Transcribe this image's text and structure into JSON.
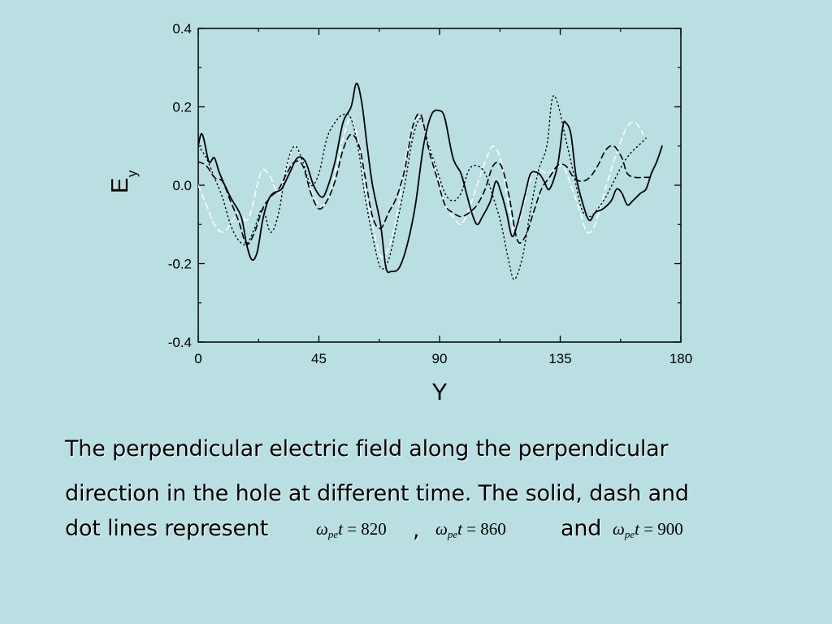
{
  "chart_data": {
    "type": "line",
    "title": "",
    "xlabel": "Y",
    "ylabel": "E",
    "ylabel_sub": "y",
    "xlim": [
      0,
      180
    ],
    "ylim": [
      -0.4,
      0.4
    ],
    "xticks": [
      0,
      45,
      90,
      135,
      180
    ],
    "xtick_labels": [
      "0",
      "45",
      "90",
      "135",
      "180"
    ],
    "yticks": [
      0.4,
      0.2,
      0.0,
      -0.2,
      -0.4
    ],
    "ytick_labels": [
      "0.4",
      "0.2",
      "0.0",
      "-0.2",
      "-0.4"
    ],
    "grid": false,
    "series": [
      {
        "style": "solid",
        "color": "#000000",
        "points": [
          [
            0,
            0.1
          ],
          [
            1,
            0.13
          ],
          [
            2,
            0.12
          ],
          [
            4,
            0.06
          ],
          [
            6,
            0.07
          ],
          [
            8,
            0.03
          ],
          [
            12,
            -0.03
          ],
          [
            16,
            -0.08
          ],
          [
            18,
            -0.15
          ],
          [
            20,
            -0.19
          ],
          [
            22,
            -0.17
          ],
          [
            24,
            -0.09
          ],
          [
            26,
            -0.04
          ],
          [
            28,
            -0.02
          ],
          [
            31,
            -0.01
          ],
          [
            34,
            0.03
          ],
          [
            37,
            0.07
          ],
          [
            40,
            0.06
          ],
          [
            43,
            0.0
          ],
          [
            46,
            -0.03
          ],
          [
            48,
            -0.01
          ],
          [
            51,
            0.06
          ],
          [
            54,
            0.16
          ],
          [
            57,
            0.2
          ],
          [
            59,
            0.26
          ],
          [
            61,
            0.21
          ],
          [
            63,
            0.1
          ],
          [
            65,
            0.0
          ],
          [
            68,
            -0.1
          ],
          [
            70,
            -0.21
          ],
          [
            72,
            -0.22
          ],
          [
            75,
            -0.21
          ],
          [
            78,
            -0.15
          ],
          [
            81,
            -0.05
          ],
          [
            84,
            0.1
          ],
          [
            87,
            0.18
          ],
          [
            90,
            0.19
          ],
          [
            92,
            0.17
          ],
          [
            95,
            0.07
          ],
          [
            98,
            0.03
          ],
          [
            100,
            -0.02
          ],
          [
            102,
            -0.07
          ],
          [
            104,
            -0.1
          ],
          [
            106,
            -0.08
          ],
          [
            109,
            -0.04
          ],
          [
            111,
            0.01
          ],
          [
            113,
            -0.02
          ],
          [
            115,
            -0.07
          ],
          [
            117,
            -0.13
          ],
          [
            119,
            -0.1
          ],
          [
            122,
            -0.02
          ],
          [
            124,
            0.03
          ],
          [
            127,
            0.03
          ],
          [
            129,
            0.01
          ],
          [
            131,
            -0.01
          ],
          [
            134,
            0.05
          ],
          [
            136,
            0.15
          ],
          [
            137,
            0.16
          ],
          [
            139,
            0.13
          ],
          [
            141,
            0.02
          ],
          [
            144,
            -0.06
          ],
          [
            146,
            -0.09
          ],
          [
            148,
            -0.07
          ],
          [
            151,
            -0.06
          ],
          [
            154,
            -0.04
          ],
          [
            156,
            -0.01
          ],
          [
            158,
            -0.02
          ],
          [
            160,
            -0.05
          ],
          [
            162,
            -0.04
          ],
          [
            165,
            -0.02
          ],
          [
            167,
            -0.01
          ],
          [
            169,
            0.03
          ],
          [
            171,
            0.06
          ],
          [
            173,
            0.1
          ]
        ]
      },
      {
        "style": "dash",
        "color": "#000000",
        "points": [
          [
            0,
            0.06
          ],
          [
            3,
            0.05
          ],
          [
            6,
            0.02
          ],
          [
            9,
            0.01
          ],
          [
            12,
            -0.04
          ],
          [
            15,
            -0.09
          ],
          [
            18,
            -0.15
          ],
          [
            21,
            -0.12
          ],
          [
            24,
            -0.06
          ],
          [
            27,
            -0.03
          ],
          [
            30,
            -0.01
          ],
          [
            33,
            0.03
          ],
          [
            36,
            0.06
          ],
          [
            39,
            0.05
          ],
          [
            42,
            -0.02
          ],
          [
            45,
            -0.06
          ],
          [
            48,
            -0.04
          ],
          [
            51,
            0.01
          ],
          [
            54,
            0.09
          ],
          [
            57,
            0.13
          ],
          [
            60,
            0.1
          ],
          [
            62,
            0.03
          ],
          [
            65,
            -0.08
          ],
          [
            68,
            -0.11
          ],
          [
            71,
            -0.07
          ],
          [
            74,
            -0.03
          ],
          [
            77,
            0.04
          ],
          [
            80,
            0.15
          ],
          [
            83,
            0.18
          ],
          [
            86,
            0.09
          ],
          [
            89,
            0.02
          ],
          [
            92,
            -0.05
          ],
          [
            95,
            -0.07
          ],
          [
            98,
            -0.08
          ],
          [
            101,
            -0.07
          ],
          [
            104,
            -0.05
          ],
          [
            107,
            -0.01
          ],
          [
            110,
            0.05
          ],
          [
            113,
            0.05
          ],
          [
            116,
            -0.03
          ],
          [
            119,
            -0.14
          ],
          [
            122,
            -0.13
          ],
          [
            125,
            -0.07
          ],
          [
            128,
            -0.01
          ],
          [
            131,
            0.02
          ],
          [
            134,
            0.05
          ],
          [
            137,
            0.05
          ],
          [
            140,
            0.02
          ],
          [
            143,
            0.01
          ],
          [
            146,
            0.02
          ],
          [
            149,
            0.05
          ],
          [
            152,
            0.09
          ],
          [
            155,
            0.1
          ],
          [
            158,
            0.07
          ],
          [
            160,
            0.03
          ],
          [
            163,
            0.02
          ],
          [
            166,
            0.02
          ],
          [
            170,
            0.02
          ]
        ]
      },
      {
        "style": "dot",
        "color": "#000000",
        "points": [
          [
            0,
            0.1
          ],
          [
            3,
            0.07
          ],
          [
            6,
            0.02
          ],
          [
            9,
            -0.03
          ],
          [
            12,
            -0.1
          ],
          [
            15,
            -0.14
          ],
          [
            18,
            -0.15
          ],
          [
            21,
            -0.11
          ],
          [
            24,
            -0.06
          ],
          [
            27,
            -0.12
          ],
          [
            30,
            -0.07
          ],
          [
            33,
            0.05
          ],
          [
            36,
            0.1
          ],
          [
            39,
            0.06
          ],
          [
            42,
            0.0
          ],
          [
            45,
            0.03
          ],
          [
            48,
            0.12
          ],
          [
            51,
            0.16
          ],
          [
            54,
            0.18
          ],
          [
            57,
            0.17
          ],
          [
            60,
            0.08
          ],
          [
            62,
            -0.02
          ],
          [
            65,
            -0.13
          ],
          [
            68,
            -0.21
          ],
          [
            71,
            -0.19
          ],
          [
            74,
            -0.1
          ],
          [
            77,
            0.0
          ],
          [
            80,
            0.12
          ],
          [
            83,
            0.17
          ],
          [
            86,
            0.1
          ],
          [
            89,
            0.04
          ],
          [
            92,
            -0.02
          ],
          [
            95,
            -0.04
          ],
          [
            98,
            -0.02
          ],
          [
            101,
            0.04
          ],
          [
            104,
            0.05
          ],
          [
            107,
            0.03
          ],
          [
            110,
            -0.03
          ],
          [
            113,
            -0.1
          ],
          [
            116,
            -0.2
          ],
          [
            118,
            -0.24
          ],
          [
            121,
            -0.18
          ],
          [
            124,
            -0.06
          ],
          [
            127,
            0.04
          ],
          [
            130,
            0.1
          ],
          [
            132,
            0.22
          ],
          [
            134,
            0.21
          ],
          [
            137,
            0.12
          ],
          [
            140,
            0.03
          ],
          [
            143,
            -0.06
          ],
          [
            146,
            -0.08
          ],
          [
            149,
            -0.06
          ],
          [
            152,
            -0.03
          ],
          [
            155,
            0.01
          ],
          [
            158,
            0.05
          ],
          [
            161,
            0.08
          ],
          [
            164,
            0.1
          ],
          [
            167,
            0.12
          ]
        ]
      },
      {
        "style": "dash",
        "color": "#ffffff",
        "points": [
          [
            0,
            0.0
          ],
          [
            3,
            -0.05
          ],
          [
            6,
            -0.1
          ],
          [
            9,
            -0.12
          ],
          [
            12,
            -0.1
          ],
          [
            15,
            -0.07
          ],
          [
            18,
            -0.09
          ],
          [
            20,
            -0.06
          ],
          [
            22,
            0.0
          ],
          [
            24,
            0.04
          ],
          [
            27,
            0.02
          ],
          [
            30,
            -0.02
          ],
          [
            33,
            0.05
          ],
          [
            36,
            0.1
          ],
          [
            39,
            0.06
          ],
          [
            42,
            -0.01
          ],
          [
            45,
            -0.05
          ],
          [
            48,
            -0.04
          ],
          [
            51,
            0.03
          ],
          [
            54,
            0.12
          ],
          [
            57,
            0.17
          ],
          [
            60,
            0.1
          ],
          [
            62,
            0.0
          ],
          [
            65,
            -0.1
          ],
          [
            68,
            -0.18
          ],
          [
            71,
            -0.16
          ],
          [
            74,
            -0.08
          ],
          [
            77,
            0.05
          ],
          [
            80,
            0.15
          ],
          [
            83,
            0.17
          ],
          [
            86,
            0.1
          ],
          [
            89,
            0.03
          ],
          [
            92,
            -0.05
          ],
          [
            95,
            -0.08
          ],
          [
            98,
            -0.1
          ],
          [
            101,
            -0.06
          ],
          [
            104,
            0.0
          ],
          [
            107,
            0.06
          ],
          [
            110,
            0.1
          ],
          [
            113,
            0.06
          ],
          [
            116,
            -0.06
          ],
          [
            118,
            -0.12
          ],
          [
            121,
            -0.06
          ],
          [
            124,
            0.02
          ],
          [
            127,
            0.04
          ],
          [
            130,
            0.03
          ],
          [
            133,
            0.04
          ],
          [
            136,
            0.05
          ],
          [
            139,
            0.0
          ],
          [
            142,
            -0.06
          ],
          [
            145,
            -0.12
          ],
          [
            148,
            -0.1
          ],
          [
            151,
            -0.03
          ],
          [
            154,
            0.04
          ],
          [
            157,
            0.1
          ],
          [
            160,
            0.15
          ],
          [
            163,
            0.16
          ],
          [
            166,
            0.13
          ]
        ]
      }
    ]
  },
  "caption": {
    "line1": "The perpendicular electric field along the perpendicular",
    "line2": "direction in the hole at different time. The solid, dash and",
    "line3_a": "dot lines represent",
    "line3_comma": ",",
    "line3_and": "and"
  },
  "math": {
    "omega": "ω",
    "sub": "pe",
    "t": "t",
    "eq": "=",
    "t1": "820",
    "t2": "860",
    "t3": "900"
  }
}
